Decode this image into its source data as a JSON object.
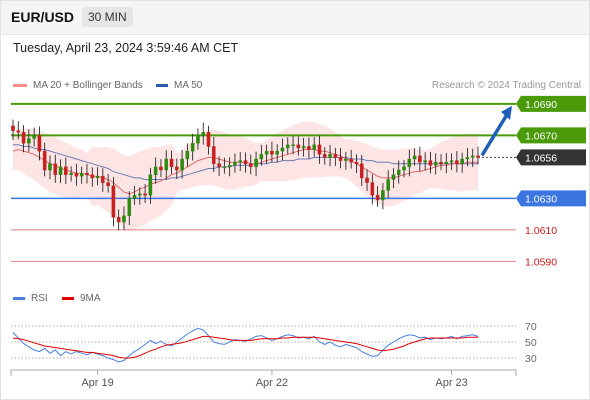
{
  "header": {
    "symbol": "EUR/USD",
    "timeframe": "30 MIN"
  },
  "datetime": "Tuesday, April 23, 2024 3:59:46 AM CET",
  "credit": "Research © 2024 Trading Central",
  "colors": {
    "resistance": "#4a9a0a",
    "support": "#3a75e0",
    "minor_support": "#e06060",
    "current": "#333333",
    "bull_candle": "#2e8b10",
    "bear_candle": "#c82020",
    "ma20": "#e06a6a",
    "ma50": "#5a6fb0",
    "bands_fill": "#fde0e0",
    "rsi": "#4a80e0",
    "rsi_ma": "#e00000",
    "arrow": "#1f5fb8"
  },
  "chart_data": [
    {
      "type": "candlestick",
      "title": "EUR/USD 30 MIN",
      "legend": [
        {
          "name": "MA 20 + Bollinger Bands",
          "color": "#f28e8e"
        },
        {
          "name": "MA 50",
          "color": "#2a5caa"
        }
      ],
      "legend_placement": "top-left",
      "ylim": [
        1.0575,
        1.0695
      ],
      "x_ticks": [
        {
          "index": 16,
          "label": "Apr 19"
        },
        {
          "index": 49,
          "label": "Apr 22"
        },
        {
          "index": 83,
          "label": "Apr 23"
        }
      ],
      "levels": [
        {
          "value": 1.069,
          "label": "1.0690",
          "kind": "resistance"
        },
        {
          "value": 1.067,
          "label": "1.0670",
          "kind": "resistance"
        },
        {
          "value": 1.0656,
          "label": "1.0656",
          "kind": "current"
        },
        {
          "value": 1.063,
          "label": "1.0630",
          "kind": "support"
        },
        {
          "value": 1.061,
          "label": "1.0610",
          "kind": "minor_support"
        },
        {
          "value": 1.059,
          "label": "1.0590",
          "kind": "minor_support"
        }
      ],
      "forecast_arrow": {
        "from": 1.0656,
        "to": 1.069
      },
      "closes": [
        1.0673,
        1.0672,
        1.0665,
        1.0668,
        1.067,
        1.066,
        1.0648,
        1.0652,
        1.0645,
        1.065,
        1.0645,
        1.0646,
        1.0644,
        1.0646,
        1.0645,
        1.0643,
        1.0644,
        1.064,
        1.0638,
        1.0618,
        1.0615,
        1.0619,
        1.063,
        1.0632,
        1.0633,
        1.0632,
        1.0645,
        1.065,
        1.0648,
        1.0655,
        1.065,
        1.0648,
        1.0655,
        1.066,
        1.0665,
        1.067,
        1.0672,
        1.0663,
        1.0652,
        1.065,
        1.065,
        1.0651,
        1.0653,
        1.0654,
        1.0652,
        1.065,
        1.0655,
        1.0658,
        1.066,
        1.0658,
        1.066,
        1.0662,
        1.0664,
        1.0664,
        1.0662,
        1.0663,
        1.0661,
        1.0664,
        1.0658,
        1.0656,
        1.0658,
        1.0656,
        1.0654,
        1.0655,
        1.0653,
        1.0652,
        1.0643,
        1.064,
        1.0632,
        1.0629,
        1.0635,
        1.0642,
        1.0645,
        1.0648,
        1.065,
        1.0655,
        1.0657,
        1.0653,
        1.0654,
        1.0651,
        1.0653,
        1.0652,
        1.0653,
        1.0654,
        1.0652,
        1.0655,
        1.0656,
        1.0657,
        1.0656
      ],
      "ma20": [
        1.066,
        1.0661,
        1.066,
        1.0659,
        1.0658,
        1.0656,
        1.0654,
        1.0652,
        1.0651,
        1.0649,
        1.0648,
        1.0647,
        1.0646,
        1.0646,
        1.0645,
        1.0644,
        1.0644,
        1.0643,
        1.0642,
        1.064,
        1.0637,
        1.0634,
        1.0633,
        1.0634,
        1.0636,
        1.0637,
        1.0639,
        1.064,
        1.0641,
        1.0643,
        1.0645,
        1.0646,
        1.0648,
        1.065,
        1.0652,
        1.0654,
        1.0655,
        1.0656,
        1.0656,
        1.0655,
        1.0654,
        1.0653,
        1.0653,
        1.0653,
        1.0653,
        1.0652,
        1.0652,
        1.0653,
        1.0654,
        1.0655,
        1.0656,
        1.0657,
        1.0658,
        1.0659,
        1.066,
        1.0661,
        1.0661,
        1.0661,
        1.066,
        1.066,
        1.0659,
        1.0658,
        1.0657,
        1.0655,
        1.0654,
        1.0652,
        1.065,
        1.0648,
        1.0646,
        1.0644,
        1.0643,
        1.0643,
        1.0643,
        1.0644,
        1.0645,
        1.0646,
        1.0647,
        1.0647,
        1.0648,
        1.0649,
        1.065,
        1.0651,
        1.0651,
        1.0652,
        1.0652,
        1.0652,
        1.0653,
        1.0653,
        1.0653
      ],
      "ma50": [
        1.0664,
        1.0664,
        1.0663,
        1.0663,
        1.0662,
        1.0661,
        1.0661,
        1.066,
        1.0659,
        1.0658,
        1.0657,
        1.0656,
        1.0655,
        1.0654,
        1.0653,
        1.0652,
        1.0651,
        1.065,
        1.0649,
        1.0647,
        1.0646,
        1.0645,
        1.0644,
        1.0643,
        1.0643,
        1.0642,
        1.0642,
        1.0642,
        1.0642,
        1.0642,
        1.0643,
        1.0643,
        1.0644,
        1.0645,
        1.0646,
        1.0647,
        1.0648,
        1.0649,
        1.0649,
        1.065,
        1.065,
        1.065,
        1.0651,
        1.0651,
        1.0651,
        1.0651,
        1.0652,
        1.0652,
        1.0652,
        1.0653,
        1.0653,
        1.0654,
        1.0654,
        1.0654,
        1.0655,
        1.0655,
        1.0655,
        1.0656,
        1.0656,
        1.0656,
        1.0656,
        1.0656,
        1.0656,
        1.0656,
        1.0655,
        1.0655,
        1.0655,
        1.0654,
        1.0654,
        1.0653,
        1.0653,
        1.0653,
        1.0652,
        1.0652,
        1.0652,
        1.0652,
        1.0652,
        1.0652,
        1.0652,
        1.0652,
        1.0652,
        1.0652,
        1.0652,
        1.0652,
        1.0652,
        1.0652,
        1.0652,
        1.0652,
        1.0652
      ]
    },
    {
      "type": "line",
      "title": "RSI",
      "legend": [
        {
          "name": "RSI",
          "color": "#4a80e0"
        },
        {
          "name": "9MA",
          "color": "#e00000"
        }
      ],
      "legend_placement": "top-left",
      "ylim": [
        20,
        80
      ],
      "y_ticks": [
        70,
        50,
        30
      ],
      "series": [
        {
          "name": "RSI",
          "values": [
            62,
            55,
            48,
            44,
            40,
            38,
            42,
            36,
            40,
            33,
            38,
            35,
            38,
            36,
            34,
            37,
            35,
            33,
            30,
            28,
            25,
            27,
            33,
            38,
            42,
            47,
            52,
            48,
            51,
            47,
            45,
            50,
            55,
            60,
            64,
            67,
            65,
            58,
            50,
            48,
            47,
            50,
            53,
            52,
            51,
            54,
            57,
            58,
            55,
            52,
            54,
            57,
            59,
            58,
            55,
            56,
            54,
            57,
            50,
            47,
            50,
            46,
            44,
            47,
            45,
            43,
            38,
            35,
            32,
            33,
            40,
            46,
            50,
            54,
            57,
            59,
            58,
            55,
            56,
            53,
            55,
            54,
            55,
            57,
            54,
            57,
            58,
            59,
            57
          ]
        },
        {
          "name": "9MA",
          "values": [
            55,
            54,
            53,
            51,
            49,
            47,
            45,
            44,
            43,
            42,
            41,
            40,
            39,
            38,
            37,
            37,
            36,
            35,
            34,
            33,
            31,
            30,
            30,
            31,
            33,
            36,
            39,
            41,
            44,
            46,
            47,
            48,
            49,
            51,
            53,
            55,
            57,
            57,
            56,
            55,
            54,
            53,
            52,
            52,
            52,
            52,
            53,
            54,
            54,
            54,
            54,
            55,
            55,
            56,
            56,
            56,
            56,
            56,
            55,
            54,
            53,
            52,
            51,
            50,
            49,
            48,
            46,
            44,
            42,
            40,
            39,
            40,
            41,
            43,
            45,
            48,
            50,
            52,
            54,
            55,
            55,
            55,
            55,
            55,
            55,
            55,
            56,
            56,
            56
          ]
        }
      ]
    }
  ]
}
